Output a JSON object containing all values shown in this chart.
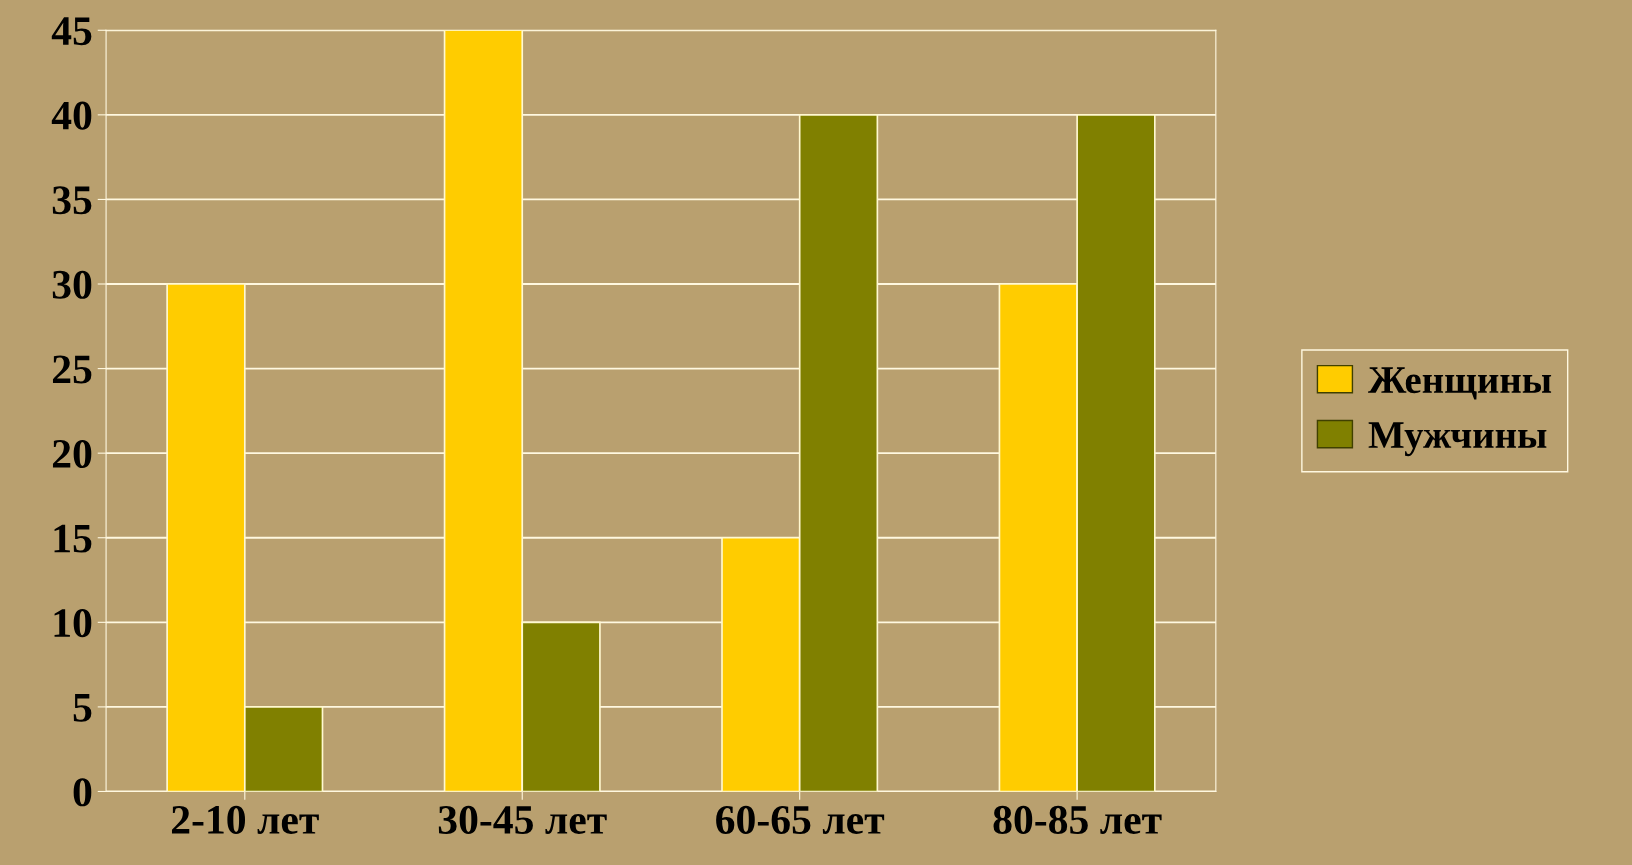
{
  "chart_data": {
    "type": "bar",
    "categories": [
      "2-10 лет",
      "30-45 лет",
      "60-65 лет",
      "80-85 лет"
    ],
    "series": [
      {
        "name": "Женщины",
        "color": "#ffcc00",
        "values": [
          30,
          45,
          15,
          30
        ]
      },
      {
        "name": "Мужчины",
        "color": "#808000",
        "values": [
          5,
          10,
          40,
          40
        ]
      }
    ],
    "ylim": [
      0,
      45
    ],
    "yticks": [
      0,
      5,
      10,
      15,
      20,
      25,
      30,
      35,
      40,
      45
    ],
    "grid": "y",
    "legend": "right"
  }
}
